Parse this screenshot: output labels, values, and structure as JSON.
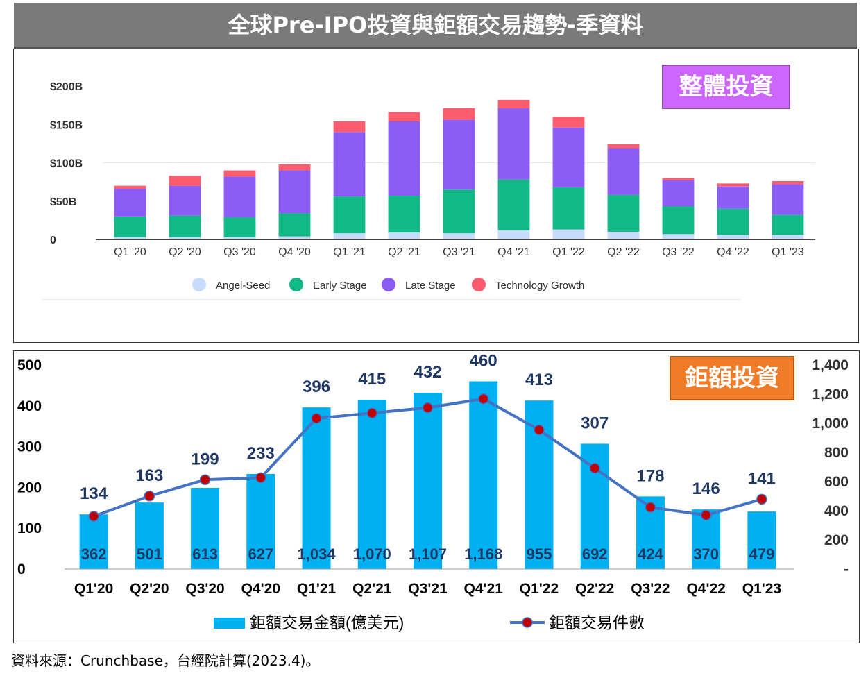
{
  "banner": {
    "title": "全球Pre-IPO投資與鉅額交易趨勢-季資料"
  },
  "source_note": "資料來源：Crunchbase，台經院計算(2023.4)。",
  "chart_data": [
    {
      "type": "bar",
      "stacked": true,
      "tag": "整體投資",
      "categories": [
        "Q1 '20",
        "Q2 '20",
        "Q3 '20",
        "Q4 '20",
        "Q1 '21",
        "Q2 '21",
        "Q3 '21",
        "Q4 '21",
        "Q1 '22",
        "Q2 '22",
        "Q3 '22",
        "Q4 '22",
        "Q1 '23"
      ],
      "y_ticks": [
        {
          "value": 200,
          "label": "$200B"
        },
        {
          "value": 150,
          "label": "$150B"
        },
        {
          "value": 100,
          "label": "$100B"
        },
        {
          "value": 50,
          "label": "$50B"
        },
        {
          "value": 0,
          "label": "0"
        }
      ],
      "ylim": [
        0,
        200
      ],
      "grid": false,
      "legend_position": "bottom",
      "series": [
        {
          "name": "Angel-Seed",
          "color": "#c7dcfb",
          "values": [
            3,
            3,
            3,
            4,
            8,
            9,
            8,
            12,
            13,
            10,
            7,
            6,
            6
          ]
        },
        {
          "name": "Early Stage",
          "color": "#12b886",
          "values": [
            27,
            28,
            26,
            30,
            48,
            48,
            57,
            66,
            55,
            48,
            36,
            34,
            26
          ]
        },
        {
          "name": "Late Stage",
          "color": "#8b5cf6",
          "values": [
            36,
            39,
            53,
            56,
            84,
            97,
            91,
            93,
            78,
            61,
            34,
            29,
            40
          ]
        },
        {
          "name": "Technology Growth",
          "color": "#fb5c6e",
          "values": [
            4,
            13,
            8,
            8,
            14,
            12,
            15,
            11,
            14,
            5,
            3,
            4,
            4
          ]
        }
      ]
    },
    {
      "type": "bar+line",
      "tag": "鉅額投資",
      "categories": [
        "Q1'20",
        "Q2'20",
        "Q3'20",
        "Q4'20",
        "Q1'21",
        "Q2'21",
        "Q3'21",
        "Q4'21",
        "Q1'22",
        "Q2'22",
        "Q3'22",
        "Q4'22",
        "Q1'23"
      ],
      "ylim_left": [
        0,
        500
      ],
      "y_ticks_left": [
        "0",
        "100",
        "200",
        "300",
        "400",
        "500"
      ],
      "ylim_right": [
        0,
        1400
      ],
      "y_ticks_right": [
        "-",
        "200",
        "400",
        "600",
        "800",
        "1,000",
        "1,200",
        "1,400"
      ],
      "legend_position": "bottom",
      "series": [
        {
          "name": "鉅額交易金額(億美元)",
          "type": "bar",
          "axis": "left",
          "color": "#00b0f0",
          "values": [
            134,
            163,
            199,
            233,
            396,
            415,
            432,
            460,
            413,
            307,
            178,
            146,
            141
          ],
          "labels": [
            "134",
            "163",
            "199",
            "233",
            "396",
            "415",
            "432",
            "460",
            "413",
            "307",
            "178",
            "146",
            "141"
          ]
        },
        {
          "name": "鉅額交易件數",
          "type": "line",
          "axis": "right",
          "color": "#4472c4",
          "marker_color": "#c00000",
          "values": [
            362,
            501,
            613,
            627,
            1034,
            1070,
            1107,
            1168,
            955,
            692,
            424,
            370,
            479
          ],
          "labels": [
            "362",
            "501",
            "613",
            "627",
            "1,034",
            "1,070",
            "1,107",
            "1,168",
            "955",
            "692",
            "424",
            "370",
            "479"
          ]
        }
      ]
    }
  ]
}
